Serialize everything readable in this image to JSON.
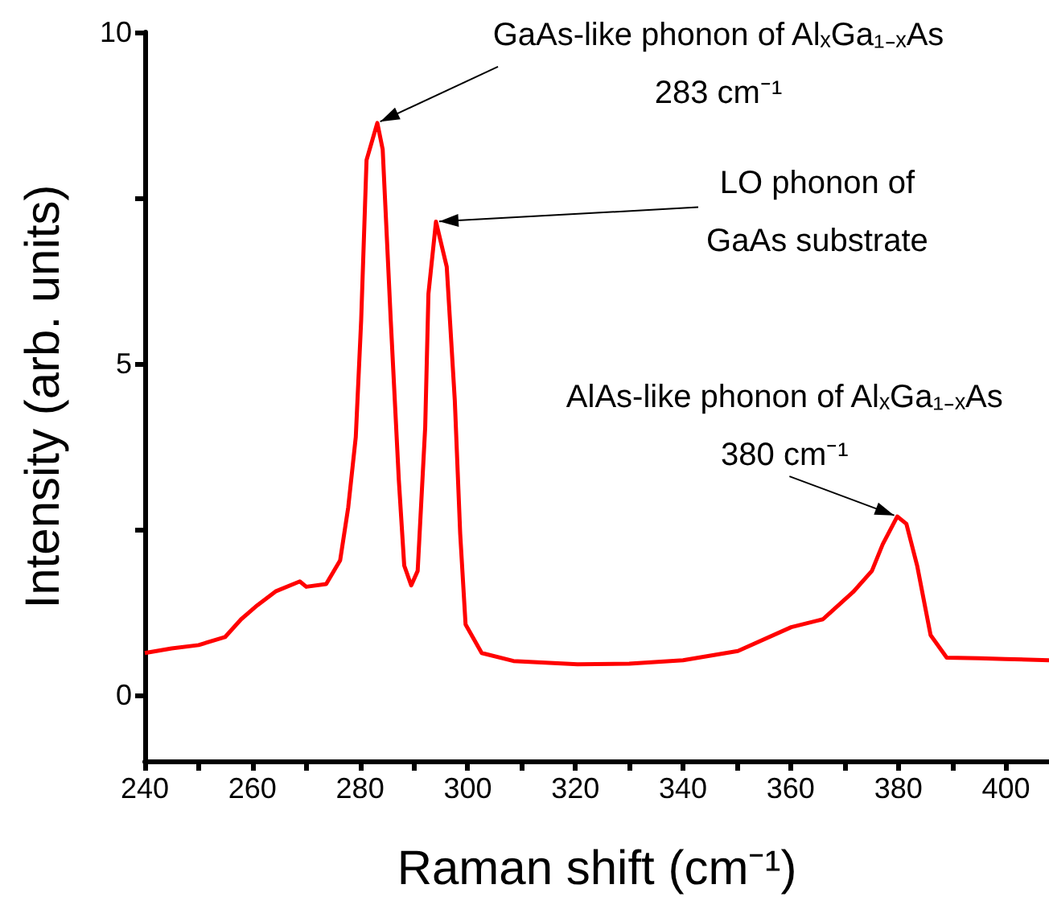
{
  "chart_data": {
    "type": "line",
    "xlabel": "Raman shift (cm⁻¹)",
    "ylabel": "Intensity (arb. units)",
    "xlim": [
      240,
      408
    ],
    "xticks": [
      240,
      {
        "value": 250,
        "label": null
      },
      260,
      {
        "value": 270,
        "label": null
      },
      280,
      {
        "value": 290,
        "label": null
      },
      300,
      {
        "value": 310,
        "label": null
      },
      320,
      {
        "value": 330,
        "label": null
      },
      340,
      {
        "value": 350,
        "label": null
      },
      360,
      {
        "value": 370,
        "label": null
      },
      380,
      {
        "value": 390,
        "label": null
      },
      400
    ],
    "ylim": [
      -1,
      10
    ],
    "yticks": [
      0,
      {
        "value": 2.5,
        "label": null
      },
      5,
      {
        "value": 7.5,
        "label": null
      },
      10
    ],
    "grid": false,
    "marker": "none",
    "line_style": "solid",
    "series": [
      {
        "color": "#ff0000",
        "x": [
          240,
          245,
          250,
          254.9,
          257.9,
          260.9,
          264.3,
          268.8,
          270,
          273.7,
          276.3,
          277.8,
          279.2,
          280.2,
          281.2,
          283.2,
          284.2,
          285.7,
          287.2,
          288.2,
          289.5,
          290.7,
          292.1,
          292.7,
          294.1,
          296.1,
          297.6,
          298.6,
          299.6,
          302.6,
          308.5,
          320.4,
          330,
          340,
          350.2,
          360.1,
          366,
          371.6,
          375.1,
          377.1,
          379.8,
          381.5,
          383.5,
          386,
          389,
          395,
          399.9,
          408
        ],
        "values": [
          0.63,
          0.7,
          0.75,
          0.87,
          1.14,
          1.35,
          1.56,
          1.71,
          1.63,
          1.67,
          2.03,
          2.83,
          3.89,
          5.65,
          8.07,
          8.63,
          8.23,
          5.65,
          3.24,
          1.95,
          1.65,
          1.87,
          4.04,
          6.05,
          7.14,
          6.46,
          4.44,
          2.43,
          1.06,
          0.63,
          0.51,
          0.46,
          0.47,
          0.52,
          0.66,
          1.02,
          1.14,
          1.55,
          1.87,
          2.27,
          2.69,
          2.58,
          1.95,
          0.9,
          0.56,
          0.55,
          0.54,
          0.52
        ]
      }
    ],
    "annotations": [
      {
        "text": "GaAs-like phonon of AlₓGa₁₋ₓAs\n283 cm⁻¹",
        "x": 283.2,
        "y": 8.63
      },
      {
        "text": "LO phonon of\nGaAs substrate",
        "x": 294.1,
        "y": 7.14
      },
      {
        "text": "AlAs-like phonon of AlₓGa₁₋ₓAs\n380 cm⁻¹",
        "x": 379.8,
        "y": 2.69
      }
    ]
  }
}
